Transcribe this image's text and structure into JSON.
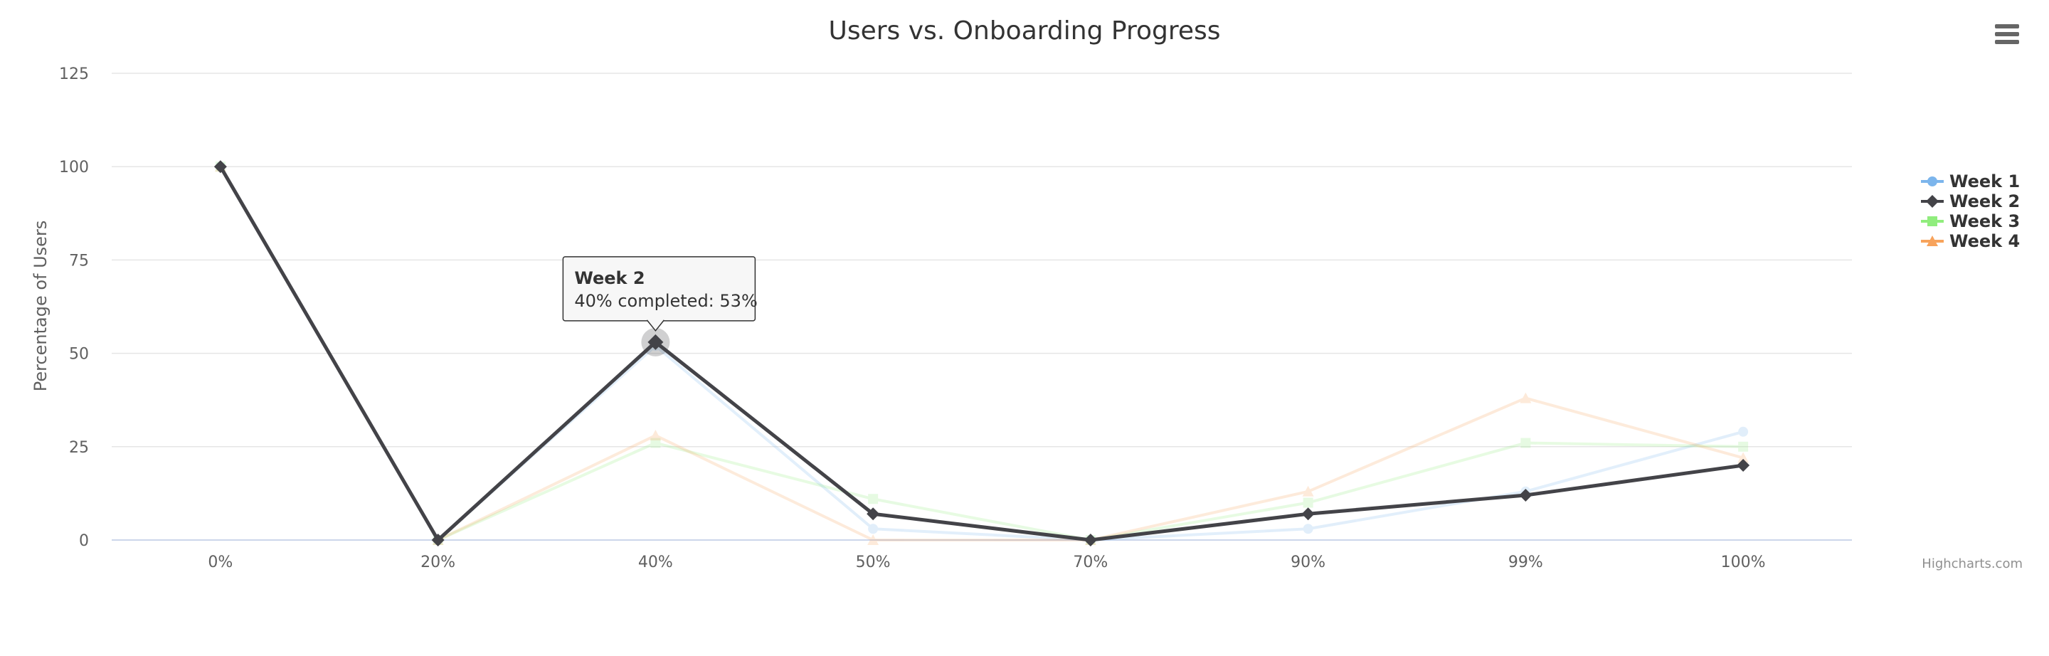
{
  "chart_data": {
    "type": "line",
    "title": "Users vs. Onboarding Progress",
    "xlabel": "",
    "ylabel": "Percentage of Users",
    "categories": [
      "0%",
      "20%",
      "40%",
      "50%",
      "70%",
      "90%",
      "99%",
      "100%"
    ],
    "ylim": [
      0,
      125
    ],
    "yticks": [
      0,
      25,
      50,
      75,
      100,
      125
    ],
    "grid": true,
    "legend_position": "right",
    "series": [
      {
        "name": "Week 1",
        "color": "#7cb5ec",
        "marker": "circle",
        "values": [
          100,
          0,
          52,
          3,
          0,
          3,
          13,
          29
        ]
      },
      {
        "name": "Week 2",
        "color": "#434348",
        "marker": "diamond",
        "values": [
          100,
          0,
          53,
          7,
          0,
          7,
          12,
          20
        ]
      },
      {
        "name": "Week 3",
        "color": "#90ed7d",
        "marker": "square",
        "values": [
          100,
          0,
          26,
          11,
          0,
          10,
          26,
          25
        ]
      },
      {
        "name": "Week 4",
        "color": "#f7a35c",
        "marker": "triangle",
        "values": [
          100,
          0,
          28,
          0,
          0,
          13,
          38,
          22
        ]
      }
    ],
    "highlighted_series": "Week 2",
    "tooltip": {
      "title": "Week 2",
      "body": "40% completed: 53%",
      "series": "Week 2",
      "category_index": 2
    }
  },
  "credits": "Highcharts.com",
  "menu_icon": "hamburger-menu-icon"
}
